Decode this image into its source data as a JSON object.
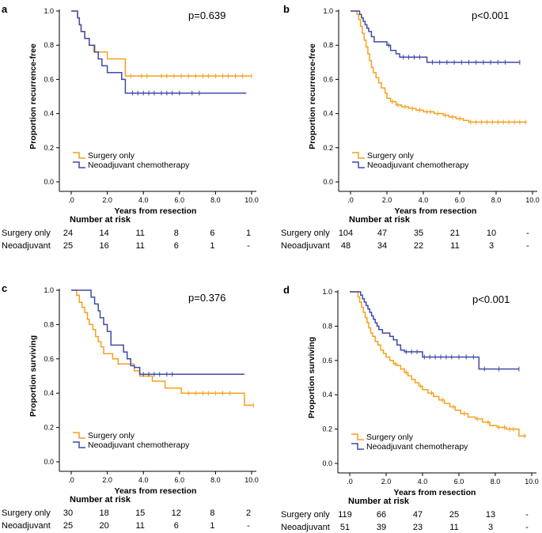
{
  "colors": {
    "surgery": "#f5a01e",
    "neoadjuvant": "#3f4aa8",
    "axis": "#000000"
  },
  "risk_table_title": "Number at risk",
  "chart_data": [
    {
      "panel": "a",
      "type": "line",
      "subtype": "kaplan-meier",
      "title": "",
      "annotation": "p=0.639",
      "ylabel": "Proportion recurrence-free",
      "xlabel": "Years from resection",
      "xlim": [
        0,
        10
      ],
      "ylim": [
        0,
        1
      ],
      "xticks": [
        ".0",
        "2.0",
        "4.0",
        "6.0",
        "8.0",
        "10.0"
      ],
      "yticks": [
        "0.0",
        "0.2",
        "0.4",
        "0.6",
        "0.8",
        "1.0"
      ],
      "legend": [
        "Surgery only",
        "Neoadjuvant chemotherapy"
      ],
      "series": [
        {
          "name": "Surgery only",
          "color": "#f5a01e",
          "steps": [
            [
              0,
              1.0
            ],
            [
              0.35,
              0.96
            ],
            [
              0.45,
              0.92
            ],
            [
              0.55,
              0.88
            ],
            [
              0.75,
              0.84
            ],
            [
              1.0,
              0.8
            ],
            [
              1.25,
              0.76
            ],
            [
              2.0,
              0.72
            ],
            [
              3.0,
              0.62
            ],
            [
              10.0,
              0.62
            ]
          ],
          "censors": [
            3.3,
            3.9,
            4.2,
            5.0,
            5.3,
            5.7,
            6.1,
            6.5,
            6.9,
            7.3,
            7.6,
            8.0,
            8.4,
            8.7,
            9.1,
            9.5,
            10.0
          ]
        },
        {
          "name": "Neoadjuvant chemotherapy",
          "color": "#3f4aa8",
          "steps": [
            [
              0,
              1.0
            ],
            [
              0.35,
              0.96
            ],
            [
              0.45,
              0.92
            ],
            [
              0.55,
              0.88
            ],
            [
              0.75,
              0.84
            ],
            [
              1.0,
              0.8
            ],
            [
              1.3,
              0.76
            ],
            [
              1.5,
              0.72
            ],
            [
              1.7,
              0.68
            ],
            [
              2.0,
              0.64
            ],
            [
              2.8,
              0.6
            ],
            [
              3.0,
              0.52
            ],
            [
              9.7,
              0.52
            ]
          ],
          "censors": [
            3.4,
            3.7,
            4.0,
            4.3,
            4.6,
            5.0,
            5.3,
            5.6,
            6.0,
            6.7,
            7.1
          ]
        }
      ],
      "risk": {
        "x": [
          ".0",
          "2.0",
          "4.0",
          "6.0",
          "8.0",
          "10.0"
        ],
        "rows": [
          {
            "label": "Surgery only",
            "values": [
              "24",
              "14",
              "11",
              "8",
              "6",
              "1"
            ]
          },
          {
            "label": "Neoadjuvant",
            "values": [
              "25",
              "16",
              "11",
              "6",
              "1",
              "-"
            ]
          }
        ]
      }
    },
    {
      "panel": "b",
      "type": "line",
      "subtype": "kaplan-meier",
      "title": "",
      "annotation": "p<0.001",
      "ylabel": "Proportion recurrence-free",
      "xlabel": "Years from resection",
      "xlim": [
        0,
        10
      ],
      "ylim": [
        0,
        1
      ],
      "xticks": [
        ".0",
        "2.0",
        "4.0",
        "6.0",
        "8.0",
        "10.0"
      ],
      "yticks": [
        "0.0",
        "0.2",
        "0.4",
        "0.6",
        "0.8",
        "1.0"
      ],
      "legend": [
        "Surgery only",
        "Neoadjuvant chemotherapy"
      ],
      "series": [
        {
          "name": "Surgery only",
          "color": "#f5a01e",
          "steps": [
            [
              0,
              1.0
            ],
            [
              0.35,
              0.98
            ],
            [
              0.45,
              0.95
            ],
            [
              0.55,
              0.91
            ],
            [
              0.65,
              0.87
            ],
            [
              0.75,
              0.83
            ],
            [
              0.85,
              0.79
            ],
            [
              0.95,
              0.75
            ],
            [
              1.05,
              0.71
            ],
            [
              1.15,
              0.67
            ],
            [
              1.25,
              0.64
            ],
            [
              1.4,
              0.61
            ],
            [
              1.55,
              0.58
            ],
            [
              1.7,
              0.55
            ],
            [
              1.9,
              0.52
            ],
            [
              2.0,
              0.49
            ],
            [
              2.2,
              0.47
            ],
            [
              2.5,
              0.45
            ],
            [
              2.8,
              0.44
            ],
            [
              3.2,
              0.43
            ],
            [
              3.6,
              0.42
            ],
            [
              4.0,
              0.41
            ],
            [
              4.6,
              0.4
            ],
            [
              5.1,
              0.39
            ],
            [
              5.4,
              0.38
            ],
            [
              5.8,
              0.37
            ],
            [
              6.2,
              0.36
            ],
            [
              6.5,
              0.35
            ],
            [
              9.7,
              0.35
            ]
          ],
          "censors": [
            2.3,
            2.6,
            3.0,
            3.4,
            3.8,
            4.2,
            4.4,
            4.8,
            5.2,
            5.6,
            6.0,
            6.6,
            6.9,
            7.2,
            7.5,
            7.8,
            8.1,
            8.4,
            8.7,
            9.0,
            9.3,
            9.6
          ]
        },
        {
          "name": "Neoadjuvant chemotherapy",
          "color": "#3f4aa8",
          "steps": [
            [
              0,
              1.0
            ],
            [
              0.5,
              0.98
            ],
            [
              0.6,
              0.96
            ],
            [
              0.7,
              0.94
            ],
            [
              0.8,
              0.92
            ],
            [
              0.9,
              0.9
            ],
            [
              1.0,
              0.88
            ],
            [
              1.15,
              0.85
            ],
            [
              1.3,
              0.82
            ],
            [
              2.0,
              0.8
            ],
            [
              2.2,
              0.77
            ],
            [
              2.5,
              0.75
            ],
            [
              2.7,
              0.73
            ],
            [
              4.2,
              0.7
            ],
            [
              9.3,
              0.7
            ]
          ],
          "censors": [
            2.1,
            2.9,
            3.2,
            3.5,
            3.8,
            4.5,
            4.9,
            5.3,
            5.7,
            6.1,
            6.5,
            6.9,
            7.3,
            7.7,
            8.1,
            8.5,
            9.3
          ]
        }
      ],
      "risk": {
        "x": [
          ".0",
          "2.0",
          "4.0",
          "6.0",
          "8.0",
          "10.0"
        ],
        "rows": [
          {
            "label": "Surgery only",
            "values": [
              "104",
              "47",
              "35",
              "21",
              "10",
              "-"
            ]
          },
          {
            "label": "Neoadjuvant",
            "values": [
              "48",
              "34",
              "22",
              "11",
              "3",
              "-"
            ]
          }
        ]
      }
    },
    {
      "panel": "c",
      "type": "line",
      "subtype": "kaplan-meier",
      "title": "",
      "annotation": "p=0.376",
      "ylabel": "Proportion surviving",
      "xlabel": "Years from resection",
      "xlim": [
        0,
        10
      ],
      "ylim": [
        0,
        1
      ],
      "xticks": [
        ".0",
        "2.0",
        "4.0",
        "6.0",
        "8.0",
        "10.0"
      ],
      "yticks": [
        "0.0",
        "0.2",
        "0.4",
        "0.6",
        "0.8",
        "1.0"
      ],
      "legend": [
        "Surgery only",
        "Neoadjuvant chemotherapy"
      ],
      "series": [
        {
          "name": "Surgery only",
          "color": "#f5a01e",
          "steps": [
            [
              0,
              1.0
            ],
            [
              0.3,
              0.97
            ],
            [
              0.45,
              0.93
            ],
            [
              0.6,
              0.9
            ],
            [
              0.75,
              0.87
            ],
            [
              0.9,
              0.83
            ],
            [
              1.0,
              0.8
            ],
            [
              1.2,
              0.77
            ],
            [
              1.35,
              0.73
            ],
            [
              1.5,
              0.7
            ],
            [
              1.65,
              0.67
            ],
            [
              1.8,
              0.63
            ],
            [
              2.3,
              0.6
            ],
            [
              2.6,
              0.57
            ],
            [
              3.5,
              0.53
            ],
            [
              3.8,
              0.5
            ],
            [
              4.5,
              0.47
            ],
            [
              5.2,
              0.43
            ],
            [
              6.1,
              0.4
            ],
            [
              9.6,
              0.33
            ],
            [
              10.1,
              0.33
            ]
          ],
          "censors": [
            6.5,
            6.9,
            7.3,
            7.6,
            8.0,
            8.4,
            8.8,
            10.1
          ]
        },
        {
          "name": "Neoadjuvant chemotherapy",
          "color": "#3f4aa8",
          "steps": [
            [
              0,
              1.0
            ],
            [
              1.1,
              0.96
            ],
            [
              1.3,
              0.92
            ],
            [
              1.5,
              0.88
            ],
            [
              1.6,
              0.84
            ],
            [
              1.8,
              0.8
            ],
            [
              2.0,
              0.76
            ],
            [
              2.2,
              0.68
            ],
            [
              2.9,
              0.64
            ],
            [
              3.1,
              0.6
            ],
            [
              3.3,
              0.56
            ],
            [
              3.5,
              0.55
            ],
            [
              3.8,
              0.51
            ],
            [
              9.6,
              0.51
            ]
          ],
          "censors": [
            4.0,
            4.3,
            4.6,
            4.9,
            5.3,
            5.6
          ]
        }
      ],
      "risk": {
        "x": [
          ".0",
          "2.0",
          "4.0",
          "6.0",
          "8.0",
          "10.0"
        ],
        "rows": [
          {
            "label": "Surgery only",
            "values": [
              "30",
              "18",
              "15",
              "12",
              "8",
              "2"
            ]
          },
          {
            "label": "Neoadjuvant",
            "values": [
              "25",
              "20",
              "11",
              "6",
              "1",
              "-"
            ]
          }
        ]
      }
    },
    {
      "panel": "d",
      "type": "line",
      "subtype": "kaplan-meier",
      "title": "",
      "annotation": "p<0.001",
      "ylabel": "Proportion surviving",
      "xlabel": "Years from resection",
      "xlim": [
        0,
        10
      ],
      "ylim": [
        0,
        1
      ],
      "xticks": [
        ".0",
        "2.0",
        "4.0",
        "6.0",
        "8.0",
        "10.0"
      ],
      "yticks": [
        "0.0",
        "0.2",
        "0.4",
        "0.6",
        "0.8",
        "1.0"
      ],
      "legend": [
        "Surgery only",
        "Neoadjuvant chemotherapy"
      ],
      "series": [
        {
          "name": "Surgery only",
          "color": "#f5a01e",
          "steps": [
            [
              0,
              1.0
            ],
            [
              0.45,
              0.97
            ],
            [
              0.55,
              0.94
            ],
            [
              0.65,
              0.91
            ],
            [
              0.75,
              0.88
            ],
            [
              0.85,
              0.85
            ],
            [
              0.95,
              0.82
            ],
            [
              1.05,
              0.79
            ],
            [
              1.15,
              0.76
            ],
            [
              1.25,
              0.74
            ],
            [
              1.4,
              0.71
            ],
            [
              1.55,
              0.69
            ],
            [
              1.7,
              0.66
            ],
            [
              1.85,
              0.64
            ],
            [
              2.0,
              0.62
            ],
            [
              2.2,
              0.6
            ],
            [
              2.4,
              0.58
            ],
            [
              2.6,
              0.57
            ],
            [
              2.8,
              0.55
            ],
            [
              3.0,
              0.53
            ],
            [
              3.2,
              0.51
            ],
            [
              3.4,
              0.49
            ],
            [
              3.6,
              0.47
            ],
            [
              3.8,
              0.45
            ],
            [
              4.0,
              0.43
            ],
            [
              4.3,
              0.41
            ],
            [
              4.6,
              0.39
            ],
            [
              4.9,
              0.37
            ],
            [
              5.2,
              0.35
            ],
            [
              5.5,
              0.33
            ],
            [
              5.8,
              0.31
            ],
            [
              6.1,
              0.29
            ],
            [
              6.5,
              0.27
            ],
            [
              6.9,
              0.26
            ],
            [
              7.3,
              0.24
            ],
            [
              7.7,
              0.22
            ],
            [
              8.1,
              0.21
            ],
            [
              8.6,
              0.2
            ],
            [
              9.3,
              0.16
            ],
            [
              9.7,
              0.16
            ]
          ],
          "censors": [
            2.5,
            3.1,
            3.9,
            4.5,
            5.1,
            5.7,
            6.3,
            7.0,
            7.6,
            8.2,
            8.5,
            8.8,
            9.0,
            9.6
          ]
        },
        {
          "name": "Neoadjuvant chemotherapy",
          "color": "#3f4aa8",
          "steps": [
            [
              0,
              1.0
            ],
            [
              0.6,
              0.98
            ],
            [
              0.7,
              0.96
            ],
            [
              0.8,
              0.94
            ],
            [
              0.9,
              0.92
            ],
            [
              1.0,
              0.9
            ],
            [
              1.1,
              0.88
            ],
            [
              1.2,
              0.86
            ],
            [
              1.3,
              0.84
            ],
            [
              1.4,
              0.82
            ],
            [
              1.5,
              0.8
            ],
            [
              1.6,
              0.78
            ],
            [
              1.8,
              0.76
            ],
            [
              2.2,
              0.74
            ],
            [
              2.4,
              0.72
            ],
            [
              2.6,
              0.69
            ],
            [
              2.8,
              0.66
            ],
            [
              3.0,
              0.65
            ],
            [
              4.0,
              0.62
            ],
            [
              7.1,
              0.55
            ],
            [
              9.3,
              0.55
            ]
          ],
          "censors": [
            3.1,
            3.4,
            3.7,
            4.1,
            4.4,
            4.7,
            5.0,
            5.3,
            5.6,
            6.0,
            6.4,
            6.8,
            7.4,
            8.2,
            9.3
          ]
        }
      ],
      "risk": {
        "x": [
          ".0",
          "2.0",
          "4.0",
          "6.0",
          "8.0",
          "10.0"
        ],
        "rows": [
          {
            "label": "Surgery only",
            "values": [
              "119",
              "66",
              "47",
              "25",
              "13",
              "-"
            ]
          },
          {
            "label": "Neoadjuvant",
            "values": [
              "51",
              "39",
              "23",
              "11",
              "3",
              "-"
            ]
          }
        ]
      }
    }
  ]
}
